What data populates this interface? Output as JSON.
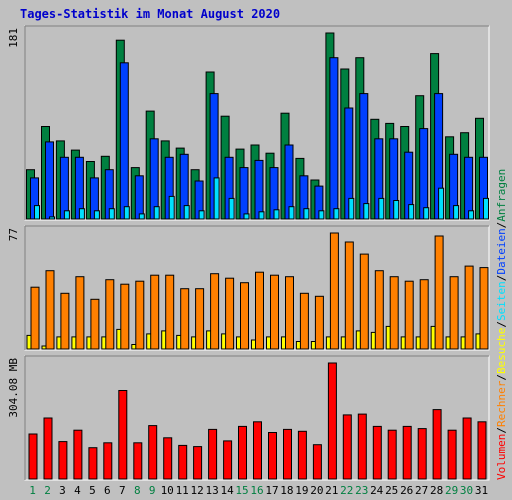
{
  "chart_data": {
    "title": "Tages-Statistik im Monat August 2020",
    "categories": [
      "1",
      "2",
      "3",
      "4",
      "5",
      "6",
      "7",
      "8",
      "9",
      "10",
      "11",
      "12",
      "13",
      "14",
      "15",
      "16",
      "17",
      "18",
      "19",
      "20",
      "21",
      "22",
      "23",
      "24",
      "25",
      "26",
      "27",
      "28",
      "29",
      "30",
      "31"
    ],
    "weekend_days": [
      "1",
      "2",
      "8",
      "9",
      "15",
      "16",
      "22",
      "23",
      "29",
      "30"
    ],
    "colors": {
      "title": "#0000cc",
      "weekday_label": "#000000",
      "weekend_label": "#007f40",
      "anfragen": "#008040",
      "dateien": "#0040ff",
      "seiten": "#00e0ff",
      "besuche": "#ffff00",
      "rechner": "#ff8000",
      "volumen": "#ff0000",
      "plot_bg": "#c0c0c0"
    },
    "panels": [
      {
        "type": "bar",
        "ymax_label": "181",
        "ylim": [
          0,
          181
        ],
        "series": [
          {
            "name": "Anfragen",
            "values": [
              48,
              90,
              76,
              67,
              56,
              61,
              174,
              50,
              105,
              76,
              69,
              48,
              143,
              100,
              68,
              72,
              64,
              103,
              59,
              38,
              181,
              146,
              157,
              97,
              93,
              90,
              120,
              161,
              80,
              84,
              98
            ]
          },
          {
            "name": "Dateien",
            "values": [
              40,
              75,
              60,
              60,
              40,
              48,
              152,
              42,
              78,
              60,
              63,
              37,
              122,
              60,
              50,
              57,
              50,
              72,
              42,
              32,
              157,
              108,
              122,
              78,
              78,
              65,
              88,
              122,
              63,
              60,
              60
            ]
          },
          {
            "name": "Seiten",
            "values": [
              13,
              2,
              8,
              10,
              8,
              10,
              12,
              5,
              12,
              22,
              13,
              8,
              40,
              20,
              5,
              7,
              9,
              12,
              10,
              8,
              10,
              20,
              15,
              20,
              18,
              14,
              11,
              30,
              13,
              8,
              20
            ]
          }
        ]
      },
      {
        "type": "bar",
        "ymax_label": "77",
        "ylim": [
          0,
          77
        ],
        "series": [
          {
            "name": "Besuche",
            "values": [
              9,
              2,
              8,
              8,
              8,
              8,
              13,
              3,
              10,
              12,
              9,
              8,
              12,
              10,
              8,
              6,
              8,
              8,
              5,
              5,
              8,
              8,
              12,
              11,
              15,
              8,
              8,
              15,
              8,
              8,
              10
            ]
          },
          {
            "name": "Rechner",
            "values": [
              41,
              52,
              37,
              48,
              33,
              46,
              43,
              45,
              49,
              49,
              40,
              40,
              50,
              47,
              44,
              51,
              49,
              48,
              37,
              35,
              77,
              71,
              63,
              52,
              48,
              45,
              46,
              75,
              48,
              55,
              54
            ]
          }
        ]
      },
      {
        "type": "bar",
        "ymax_label": "304.08 MB",
        "ylim": [
          0,
          304.08
        ],
        "series": [
          {
            "name": "Volumen",
            "values": [
              118,
              160,
              98,
              128,
              82,
              95,
              232,
              95,
              140,
              108,
              88,
              85,
              130,
              100,
              138,
              150,
              122,
              130,
              125,
              90,
              304,
              168,
              170,
              138,
              128,
              138,
              132,
              182,
              128,
              160,
              150
            ]
          }
        ]
      }
    ],
    "right_legend": [
      {
        "name": "Volumen",
        "color_key": "volumen"
      },
      {
        "name": "/",
        "color_key": "weekday_label"
      },
      {
        "name": "Rechner",
        "color_key": "rechner"
      },
      {
        "name": "/",
        "color_key": "weekday_label"
      },
      {
        "name": "Besuche",
        "color_key": "besuche"
      },
      {
        "name": "/",
        "color_key": "weekday_label"
      },
      {
        "name": "Seiten",
        "color_key": "seiten"
      },
      {
        "name": "/",
        "color_key": "weekday_label"
      },
      {
        "name": "Dateien",
        "color_key": "dateien"
      },
      {
        "name": "/",
        "color_key": "weekday_label"
      },
      {
        "name": "Anfragen",
        "color_key": "anfragen"
      }
    ]
  }
}
